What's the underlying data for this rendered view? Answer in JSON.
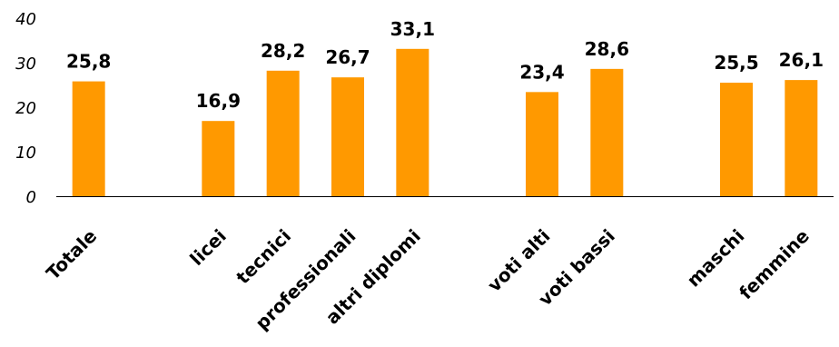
{
  "chart_data": {
    "type": "bar",
    "categories": [
      "Totale",
      "",
      "licei",
      "tecnici",
      "professionali",
      "altri diplomi",
      "",
      "voti alti",
      "voti bassi",
      "",
      "maschi",
      "femmine"
    ],
    "values": [
      25.8,
      null,
      16.9,
      28.2,
      26.7,
      33.1,
      null,
      23.4,
      28.6,
      null,
      25.5,
      26.1
    ],
    "value_labels": [
      "25,8",
      "",
      "16,9",
      "28,2",
      "26,7",
      "33,1",
      "",
      "23,4",
      "28,6",
      "",
      "25,5",
      "26,1"
    ],
    "yticks": [
      0,
      10,
      20,
      30,
      40
    ],
    "ytick_labels": [
      "0",
      "10",
      "20",
      "30",
      "40"
    ],
    "ylim": [
      0,
      40
    ],
    "grid": false,
    "legend": "none",
    "colors": {
      "bar": "#ff9900",
      "axis": "#000000"
    }
  }
}
